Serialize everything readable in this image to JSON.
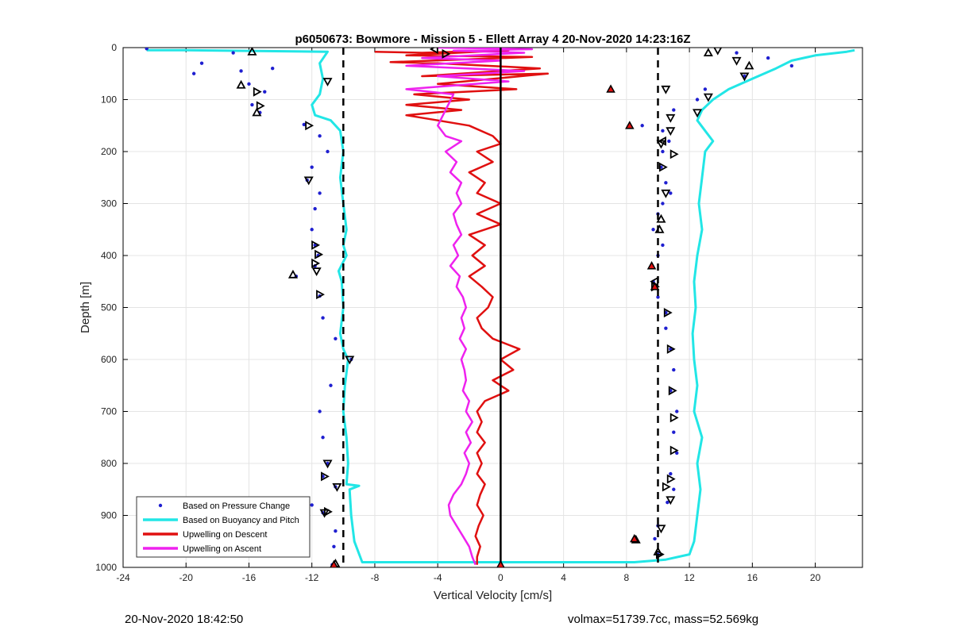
{
  "chart_data": {
    "type": "scatter",
    "title": "p6050673: Bowmore - Mission 5 - Ellett Array 4 20-Nov-2020 14:23:16Z",
    "xlabel": "Vertical Velocity [cm/s]",
    "ylabel": "Depth [m]",
    "xlim": [
      -24,
      23
    ],
    "ylim": [
      0,
      1000
    ],
    "y_reversed": true,
    "grid": true,
    "x_ticks": [
      -24,
      -20,
      -16,
      -12,
      -8,
      -4,
      0,
      4,
      8,
      12,
      16,
      20
    ],
    "y_ticks": [
      0,
      100,
      200,
      300,
      400,
      500,
      600,
      700,
      800,
      900,
      1000
    ],
    "legend_position": "bottom-left",
    "reference_lines": {
      "solid_x": 0,
      "dashed_x": [
        -10,
        10
      ]
    },
    "series": [
      {
        "name": "Based on Pressure Change",
        "kind": "points",
        "color": "#1f1fd0",
        "left": [
          [
            -22.5,
            2
          ],
          [
            -17,
            10
          ],
          [
            -19,
            30
          ],
          [
            -16.5,
            45
          ],
          [
            -19.5,
            50
          ],
          [
            -14.5,
            40
          ],
          [
            -16,
            70
          ],
          [
            -15,
            85
          ],
          [
            -15.8,
            110
          ],
          [
            -15.3,
            125
          ],
          [
            -12.5,
            148
          ],
          [
            -11.5,
            170
          ],
          [
            -11,
            200
          ],
          [
            -12,
            230
          ],
          [
            -12.3,
            255
          ],
          [
            -11.5,
            280
          ],
          [
            -11.8,
            310
          ],
          [
            -12,
            350
          ],
          [
            -11.8,
            380
          ],
          [
            -11.6,
            400
          ],
          [
            -11.8,
            420
          ],
          [
            -13,
            440
          ],
          [
            -11.5,
            478
          ],
          [
            -11.3,
            520
          ],
          [
            -10.5,
            560
          ],
          [
            -9.5,
            600
          ],
          [
            -10.8,
            650
          ],
          [
            -11.5,
            700
          ],
          [
            -11.3,
            750
          ],
          [
            -11,
            800
          ],
          [
            -11.3,
            825
          ],
          [
            -10.5,
            845
          ],
          [
            -12,
            880
          ],
          [
            -11.3,
            895
          ],
          [
            -10.5,
            930
          ],
          [
            -10.6,
            960
          ],
          [
            -10.7,
            995
          ]
        ],
        "right": [
          [
            15,
            10
          ],
          [
            17,
            20
          ],
          [
            18.5,
            35
          ],
          [
            15.5,
            55
          ],
          [
            13,
            80
          ],
          [
            12.5,
            100
          ],
          [
            11,
            120
          ],
          [
            9,
            150
          ],
          [
            10.3,
            160
          ],
          [
            10.7,
            180
          ],
          [
            10.3,
            200
          ],
          [
            10.2,
            230
          ],
          [
            10.5,
            260
          ],
          [
            10.8,
            280
          ],
          [
            10.3,
            300
          ],
          [
            10,
            320
          ],
          [
            9.7,
            350
          ],
          [
            10.3,
            380
          ],
          [
            10,
            400
          ],
          [
            9.7,
            450
          ],
          [
            10,
            480
          ],
          [
            10.5,
            510
          ],
          [
            10.5,
            540
          ],
          [
            10.8,
            580
          ],
          [
            11,
            620
          ],
          [
            10.8,
            660
          ],
          [
            11.2,
            700
          ],
          [
            11,
            740
          ],
          [
            11.2,
            780
          ],
          [
            10.8,
            820
          ],
          [
            11,
            850
          ],
          [
            10.6,
            875
          ],
          [
            10,
            920
          ],
          [
            9.8,
            945
          ],
          [
            8.5,
            950
          ],
          [
            10,
            975
          ]
        ]
      },
      {
        "name": "Based on Buoyancy and Pitch",
        "kind": "line",
        "color": "#22e6e6",
        "left": [
          [
            -22.5,
            5
          ],
          [
            -20,
            5
          ],
          [
            -11,
            8
          ],
          [
            -11.5,
            30
          ],
          [
            -11.3,
            60
          ],
          [
            -11.5,
            90
          ],
          [
            -12,
            110
          ],
          [
            -11.8,
            130
          ],
          [
            -10.8,
            140
          ],
          [
            -10.2,
            160
          ],
          [
            -10,
            200
          ],
          [
            -10.2,
            250
          ],
          [
            -10,
            300
          ],
          [
            -9.8,
            350
          ],
          [
            -10,
            380
          ],
          [
            -9.8,
            400
          ],
          [
            -10.3,
            430
          ],
          [
            -10.1,
            450
          ],
          [
            -10,
            500
          ],
          [
            -10.2,
            550
          ],
          [
            -10,
            580
          ],
          [
            -9.7,
            600
          ],
          [
            -9.9,
            650
          ],
          [
            -10,
            700
          ],
          [
            -9.8,
            750
          ],
          [
            -9.7,
            800
          ],
          [
            -9.8,
            840
          ],
          [
            -9,
            843
          ],
          [
            -9.6,
            850
          ],
          [
            -9.5,
            900
          ],
          [
            -9.3,
            950
          ],
          [
            -8.8,
            990
          ],
          [
            8.5,
            990
          ],
          [
            10.5,
            985
          ],
          [
            12,
            975
          ],
          [
            12.3,
            950
          ],
          [
            12.5,
            900
          ],
          [
            12.7,
            850
          ],
          [
            12.5,
            800
          ],
          [
            12.8,
            750
          ],
          [
            12.3,
            700
          ],
          [
            12.5,
            650
          ],
          [
            12.3,
            600
          ],
          [
            12.2,
            550
          ],
          [
            12.4,
            500
          ],
          [
            12.3,
            450
          ],
          [
            12.5,
            400
          ],
          [
            12.8,
            350
          ],
          [
            12.6,
            300
          ],
          [
            12.8,
            250
          ],
          [
            13,
            200
          ],
          [
            13.5,
            180
          ],
          [
            13,
            160
          ],
          [
            12.5,
            140
          ],
          [
            12.8,
            120
          ],
          [
            13.5,
            100
          ],
          [
            14.5,
            80
          ],
          [
            16,
            60
          ],
          [
            17.5,
            40
          ],
          [
            18.5,
            25
          ],
          [
            20,
            15
          ],
          [
            22,
            8
          ],
          [
            22.5,
            5
          ]
        ]
      },
      {
        "name": "Upwelling on Descent",
        "kind": "line",
        "color": "#e01010",
        "points": [
          [
            -8,
            8
          ],
          [
            -5,
            10
          ],
          [
            0.5,
            5
          ],
          [
            -6,
            15
          ],
          [
            2,
            18
          ],
          [
            -7,
            28
          ],
          [
            -4,
            30
          ],
          [
            2.5,
            40
          ],
          [
            -5,
            55
          ],
          [
            3,
            50
          ],
          [
            -4,
            70
          ],
          [
            1,
            80
          ],
          [
            -5.5,
            90
          ],
          [
            -2,
            100
          ],
          [
            -6,
            110
          ],
          [
            -2.5,
            120
          ],
          [
            -6,
            130
          ],
          [
            -4,
            140
          ],
          [
            -2,
            150
          ],
          [
            -0.5,
            170
          ],
          [
            0,
            185
          ],
          [
            -1.5,
            200
          ],
          [
            -0.5,
            220
          ],
          [
            -2,
            240
          ],
          [
            -1,
            260
          ],
          [
            -1.5,
            280
          ],
          [
            0,
            300
          ],
          [
            -1.5,
            320
          ],
          [
            0,
            340
          ],
          [
            -2,
            360
          ],
          [
            -1,
            380
          ],
          [
            -1.8,
            400
          ],
          [
            -1,
            420
          ],
          [
            -2,
            440
          ],
          [
            -1.2,
            460
          ],
          [
            -0.5,
            480
          ],
          [
            -0.8,
            500
          ],
          [
            -1.5,
            520
          ],
          [
            -1.2,
            540
          ],
          [
            -0.5,
            560
          ],
          [
            1.2,
            580
          ],
          [
            0,
            600
          ],
          [
            0.8,
            620
          ],
          [
            -0.5,
            640
          ],
          [
            0.5,
            660
          ],
          [
            -1,
            680
          ],
          [
            -1.5,
            700
          ],
          [
            -1.2,
            720
          ],
          [
            -1.5,
            740
          ],
          [
            -1,
            760
          ],
          [
            -1.5,
            780
          ],
          [
            -1.2,
            800
          ],
          [
            -1.5,
            820
          ],
          [
            -1,
            840
          ],
          [
            -1.3,
            860
          ],
          [
            -1.5,
            880
          ],
          [
            -1.1,
            900
          ],
          [
            -1.4,
            920
          ],
          [
            -1.6,
            940
          ],
          [
            -1.3,
            960
          ],
          [
            -1.5,
            980
          ],
          [
            -1.5,
            995
          ]
        ]
      },
      {
        "name": "Upwelling on Ascent",
        "kind": "line",
        "color": "#ee22ee",
        "points": [
          [
            -4,
            0
          ],
          [
            2,
            3
          ],
          [
            -3,
            6
          ],
          [
            1.5,
            10
          ],
          [
            -5,
            20
          ],
          [
            0,
            25
          ],
          [
            -6,
            35
          ],
          [
            1.5,
            45
          ],
          [
            -4,
            55
          ],
          [
            0.5,
            65
          ],
          [
            -6,
            80
          ],
          [
            -3,
            90
          ],
          [
            -4,
            150
          ],
          [
            -3.5,
            170
          ],
          [
            -2.5,
            180
          ],
          [
            -3.5,
            200
          ],
          [
            -2.8,
            220
          ],
          [
            -3.2,
            240
          ],
          [
            -2.5,
            260
          ],
          [
            -2.8,
            280
          ],
          [
            -2.5,
            300
          ],
          [
            -3,
            320
          ],
          [
            -2.8,
            340
          ],
          [
            -2.5,
            360
          ],
          [
            -3,
            380
          ],
          [
            -2.7,
            400
          ],
          [
            -3.2,
            420
          ],
          [
            -2.6,
            440
          ],
          [
            -2.8,
            460
          ],
          [
            -2.4,
            480
          ],
          [
            -2.2,
            500
          ],
          [
            -2.5,
            520
          ],
          [
            -2.3,
            540
          ],
          [
            -2.6,
            560
          ],
          [
            -2.2,
            580
          ],
          [
            -2.5,
            600
          ],
          [
            -2.3,
            620
          ],
          [
            -2.2,
            640
          ],
          [
            -2.4,
            660
          ],
          [
            -2,
            680
          ],
          [
            -2.2,
            700
          ],
          [
            -1.8,
            720
          ],
          [
            -2.2,
            740
          ],
          [
            -1.9,
            760
          ],
          [
            -2.3,
            780
          ],
          [
            -2,
            800
          ],
          [
            -2.2,
            820
          ],
          [
            -2.5,
            840
          ],
          [
            -3,
            860
          ],
          [
            -3.3,
            880
          ],
          [
            -3.2,
            900
          ],
          [
            -2.8,
            920
          ],
          [
            -2.4,
            940
          ],
          [
            -2,
            960
          ],
          [
            -1.8,
            980
          ],
          [
            -1.6,
            995
          ]
        ]
      }
    ],
    "markers": {
      "up_triangles": [
        [
          -15.8,
          8
        ],
        [
          -16.5,
          72
        ],
        [
          -15.5,
          125
        ],
        [
          -13.2,
          437
        ],
        [
          13.2,
          10
        ],
        [
          15.8,
          35
        ],
        [
          -10.5,
          993
        ],
        [
          10,
          970
        ],
        [
          8.6,
          947
        ],
        [
          10.1,
          350
        ],
        [
          10.2,
          330
        ]
      ],
      "down_triangles": [
        [
          -11,
          65
        ],
        [
          13.8,
          5
        ],
        [
          15,
          25
        ],
        [
          15.5,
          55
        ],
        [
          10.5,
          80
        ],
        [
          13.2,
          95
        ],
        [
          12.5,
          125
        ],
        [
          10.8,
          135
        ],
        [
          10.8,
          160
        ],
        [
          10.2,
          185
        ],
        [
          -12.2,
          255
        ],
        [
          10.5,
          280
        ],
        [
          -11.7,
          430
        ],
        [
          -9.6,
          600
        ],
        [
          -11,
          800
        ],
        [
          -10.4,
          845
        ],
        [
          -11.2,
          895
        ],
        [
          10.8,
          870
        ],
        [
          10.2,
          925
        ]
      ],
      "right_triangles": [
        [
          -15.5,
          85
        ],
        [
          -15.3,
          112
        ],
        [
          -12.2,
          150
        ],
        [
          11,
          205
        ],
        [
          10.3,
          230
        ],
        [
          -11.8,
          380
        ],
        [
          -11.6,
          398
        ],
        [
          -11.8,
          415
        ],
        [
          -11.5,
          475
        ],
        [
          9.8,
          460
        ],
        [
          10.6,
          510
        ],
        [
          10.8,
          580
        ],
        [
          10.9,
          660
        ],
        [
          11,
          712
        ],
        [
          11,
          775
        ],
        [
          10.8,
          830
        ],
        [
          10.5,
          845
        ],
        [
          -11.2,
          825
        ],
        [
          -11,
          893
        ],
        [
          10.1,
          975
        ],
        [
          -3.5,
          12
        ]
      ],
      "left_triangles": [
        [
          -4.2,
          3
        ],
        [
          10.3,
          180
        ],
        [
          9.8,
          450
        ]
      ],
      "red_triangles": [
        [
          7,
          80
        ],
        [
          8.2,
          150
        ],
        [
          9.6,
          420
        ],
        [
          9.8,
          460
        ],
        [
          8.5,
          945
        ],
        [
          -10.6,
          995
        ],
        [
          0,
          995
        ]
      ]
    }
  },
  "footer": {
    "left": "20-Nov-2020 18:42:50",
    "right": "volmax=51739.7cc, mass=52.569kg"
  }
}
